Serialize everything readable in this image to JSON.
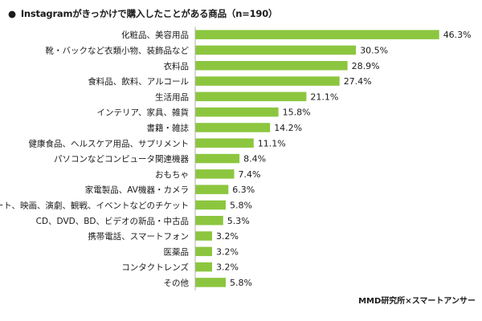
{
  "title": "Instagramがきっかけで購入したことがある商品（n=190）",
  "title_bullet": "●",
  "credit": "MMD研究所×スマートアンサー",
  "colors": {
    "bar": "#8CC63F",
    "axis": "#b0b0b0",
    "text": "#1a1a1a"
  },
  "chart_data": {
    "type": "bar",
    "orientation": "horizontal",
    "categories": [
      "化粧品、美容用品",
      "靴・バックなど衣類小物、装飾品など",
      "衣料品",
      "食料品、飲料、アルコール",
      "生活用品",
      "インテリア、家具、雑貨",
      "書籍・雑誌",
      "健康食品、ヘルスケア用品、サプリメント",
      "パソコンなどコンピュータ関連機器",
      "おもちゃ",
      "家電製品、AV機器・カメラ",
      "コンサート、映画、演劇、観戦、イベントなどのチケット",
      "CD、DVD、BD、ビデオの新品・中古品",
      "携帯電話、スマートフォン",
      "医薬品",
      "コンタクトレンズ",
      "その他"
    ],
    "values": [
      46.3,
      30.5,
      28.9,
      27.4,
      21.1,
      15.8,
      14.2,
      11.1,
      8.4,
      7.4,
      6.3,
      5.8,
      5.3,
      3.2,
      3.2,
      3.2,
      5.8
    ],
    "value_labels": [
      "46.3%",
      "30.5%",
      "28.9%",
      "27.4%",
      "21.1%",
      "15.8%",
      "14.2%",
      "11.1%",
      "8.4%",
      "7.4%",
      "6.3%",
      "5.8%",
      "5.3%",
      "3.2%",
      "3.2%",
      "3.2%",
      "5.8%"
    ],
    "unit": "%",
    "xlim": [
      0,
      50
    ],
    "grid": false,
    "legend": "none"
  }
}
